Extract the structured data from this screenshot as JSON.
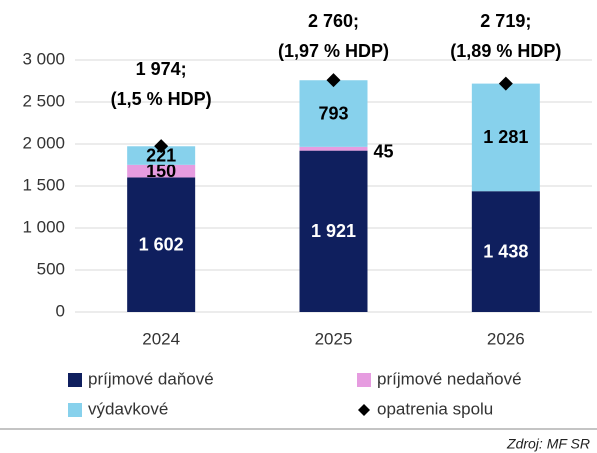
{
  "chart_data": {
    "type": "stacked_bar",
    "categories": [
      "2024",
      "2025",
      "2026"
    ],
    "series": [
      {
        "name": "príjmové daňové",
        "color": "#0f1f5e",
        "values": [
          1602,
          1921,
          1438
        ],
        "value_labels": [
          "1 602",
          "1 921",
          "1 438"
        ],
        "label_color": "#ffffff"
      },
      {
        "name": "príjmové nedaňové",
        "color": "#e69ce0",
        "values": [
          150,
          45,
          null
        ],
        "value_labels": [
          "150",
          "45",
          null
        ],
        "label_color": "#000000"
      },
      {
        "name": "výdavkové",
        "color": "#87d1ec",
        "values": [
          221,
          793,
          1281
        ],
        "value_labels": [
          "221",
          "793",
          "1 281"
        ],
        "label_color": "#000000"
      }
    ],
    "totals": {
      "name": "opatrenia spolu",
      "color": "#000000",
      "values": [
        1974,
        2760,
        2719
      ],
      "value_labels": [
        "1 974;",
        "2 760;",
        "2 719;"
      ],
      "notes": [
        "(1,5 % HDP)",
        "(1,97 % HDP)",
        "(1,89 % HDP)"
      ]
    },
    "ylim": [
      0,
      3000
    ],
    "yticks": [
      0,
      500,
      {
        "value": 1000,
        "label": "1 000"
      },
      {
        "value": 1500,
        "label": "1 500"
      },
      {
        "value": 2000,
        "label": "2 000"
      },
      {
        "value": 2500,
        "label": "2 500"
      },
      {
        "value": 3000,
        "label": "3 000"
      }
    ],
    "grid": true,
    "source": "Zdroj: MF SR"
  }
}
